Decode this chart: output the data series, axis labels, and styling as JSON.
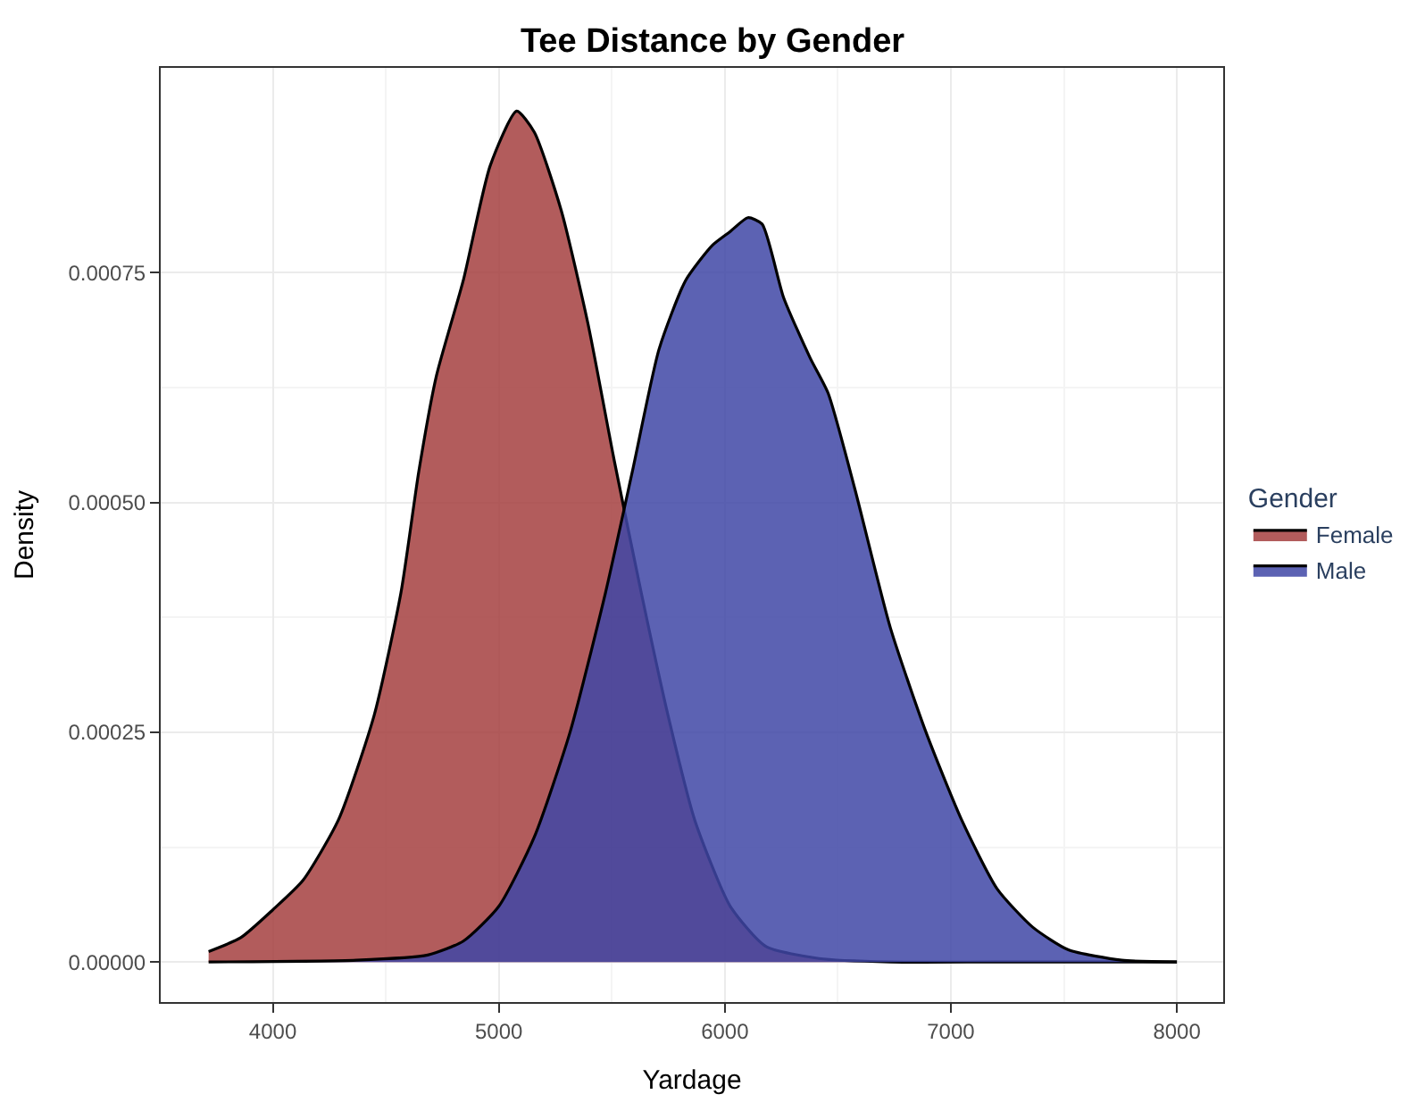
{
  "chart_data": {
    "type": "area",
    "title": "Tee Distance by Gender",
    "xlabel": "Yardage",
    "ylabel": "Density",
    "legend_title": "Gender",
    "legend": "right",
    "grid": true,
    "marker": "none",
    "line_style": "solid",
    "xlim": [
      3504,
      8205
    ],
    "xticks": [
      4000,
      5000,
      6000,
      7000,
      8000
    ],
    "ylim": [
      -4.36e-05,
      0.000973
    ],
    "yticks": [
      {
        "value": 0,
        "label": "0.00000"
      },
      {
        "value": 0.00025,
        "label": "0.00025"
      },
      {
        "value": 0.0005,
        "label": "0.00050"
      },
      {
        "value": 0.00075,
        "label": "0.00075"
      }
    ],
    "series": [
      {
        "name": "Female",
        "color": "#a5403f",
        "x": [
          3716,
          3858,
          4000,
          4134,
          4291,
          4449,
          4567,
          4646,
          4724,
          4843,
          4961,
          5079,
          5157,
          5276,
          5394,
          5512,
          5630,
          5748,
          5866,
          6024,
          6181,
          6417,
          6732,
          7200,
          8000
        ],
        "values": [
          1.14e-05,
          2.65e-05,
          5.68e-05,
          8.9e-05,
          0.000155,
          0.000269,
          0.000402,
          0.000534,
          0.000638,
          0.000742,
          0.000866,
          0.000926,
          0.000903,
          0.000818,
          0.000695,
          0.000544,
          0.000402,
          0.000269,
          0.000155,
          6.06e-05,
          1.7e-05,
          3.8e-06,
          0,
          0,
          0
        ]
      },
      {
        "name": "Male",
        "color": "#3f47a6",
        "x": [
          3716,
          4370,
          4685,
          4843,
          5000,
          5157,
          5315,
          5472,
          5591,
          5709,
          5827,
          5945,
          6024,
          6102,
          6165,
          6260,
          6378,
          6457,
          6575,
          6732,
          6890,
          7047,
          7205,
          7362,
          7520,
          7756,
          8000
        ],
        "values": [
          0,
          2e-06,
          7.6e-06,
          2.27e-05,
          6.06e-05,
          0.000136,
          0.00025,
          0.000402,
          0.000534,
          0.000667,
          0.000742,
          0.00078,
          0.000795,
          0.00081,
          0.000803,
          0.000723,
          0.000657,
          0.000619,
          0.000515,
          0.000364,
          0.00025,
          0.000155,
          7.95e-05,
          3.79e-05,
          1.32e-05,
          1.9e-06,
          0
        ]
      }
    ]
  }
}
